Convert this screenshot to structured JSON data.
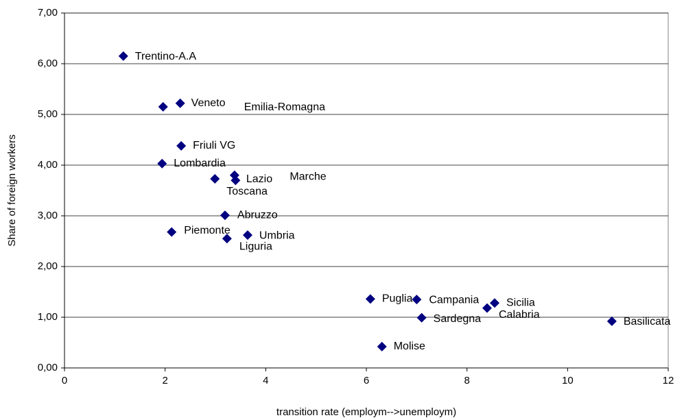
{
  "chart_data": {
    "type": "scatter",
    "x_label": "transition rate (employm-->unemploym)",
    "y_label": "Share of foreign workers",
    "color": "#000080",
    "grid": true,
    "point_labels": [
      "Trentino-A.A",
      "Veneto",
      "Emilia-Romagna",
      "Friuli VG",
      "Lombardia",
      "Toscana",
      "Lazio",
      "Marche",
      "Abruzzo",
      "Piemonte",
      "Liguria",
      "Umbria",
      "Puglia",
      "Campania",
      "Sicilia",
      "Calabria",
      "Sardegna",
      "Basilicata",
      "Molise"
    ],
    "x": [
      1.17,
      2.3,
      1.96,
      2.32,
      1.94,
      2.99,
      3.38,
      3.4,
      3.19,
      2.13,
      3.23,
      3.64,
      6.08,
      7.0,
      8.55,
      8.4,
      7.1,
      10.88,
      6.31
    ],
    "values": [
      6.15,
      5.22,
      5.15,
      4.38,
      4.03,
      3.73,
      3.8,
      3.7,
      3.01,
      2.68,
      2.55,
      2.62,
      1.36,
      1.35,
      1.28,
      1.18,
      0.99,
      0.92,
      0.42
    ],
    "xlim": [
      0,
      12
    ],
    "xticks": [
      0,
      2,
      4,
      6,
      8,
      10,
      12
    ],
    "ylim": [
      0,
      7
    ],
    "yticks": [
      {
        "value": 0,
        "label": "0,00"
      },
      {
        "value": 1,
        "label": "1,00"
      },
      {
        "value": 2,
        "label": "2,00"
      },
      {
        "value": 3,
        "label": "3,00"
      },
      {
        "value": 4,
        "label": "4,00"
      },
      {
        "value": 5,
        "label": "5,00"
      },
      {
        "value": 6,
        "label": "6,00"
      },
      {
        "value": 7,
        "label": "7,00"
      }
    ]
  }
}
